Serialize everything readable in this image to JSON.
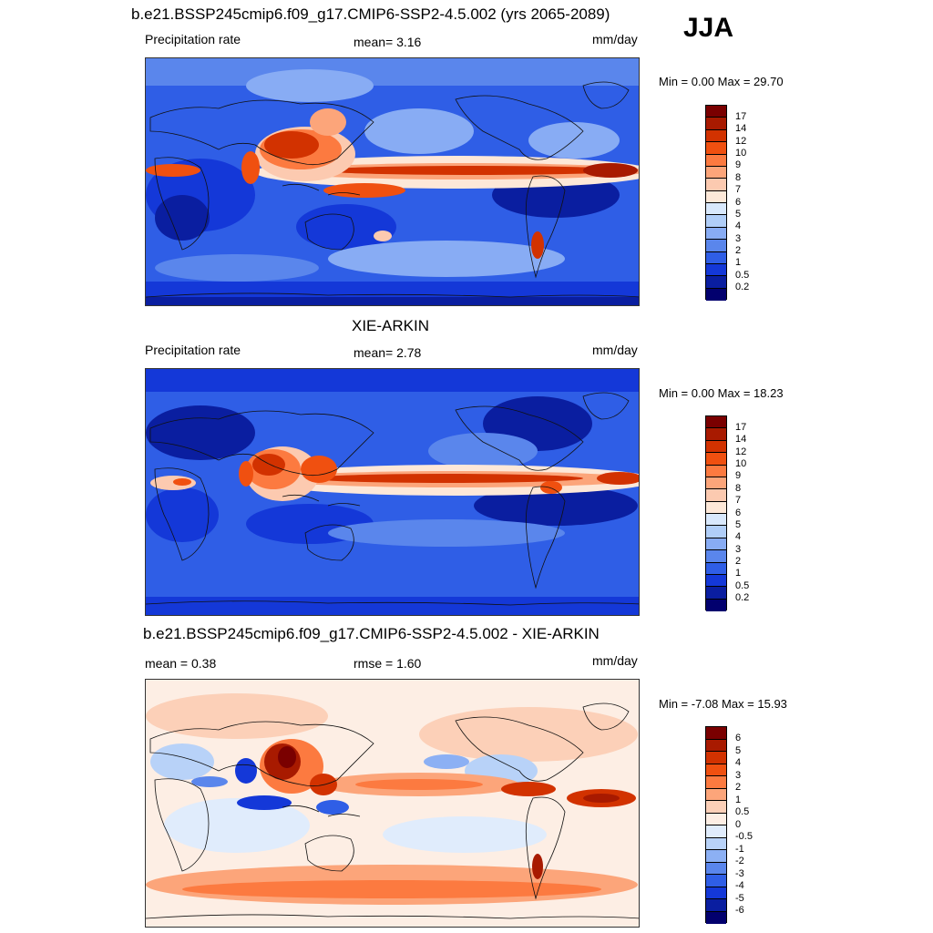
{
  "season": "JJA",
  "panels": [
    {
      "title": "b.e21.BSSP245cmip6.f09_g17.CMIP6-SSP2-4.5.002 (yrs 2065-2089)",
      "left_label": "Precipitation rate",
      "center_label": "mean=   3.16",
      "units": "mm/day",
      "minmax": "Min =   0.00 Max =  29.70",
      "colorbar_labels": [
        "17",
        "14",
        "12",
        "10",
        "9",
        "8",
        "7",
        "6",
        "5",
        "4",
        "3",
        "2",
        "1",
        "0.5",
        "0.2"
      ]
    },
    {
      "title": "XIE-ARKIN",
      "left_label": "Precipitation rate",
      "center_label": "mean=   2.78",
      "units": "mm/day",
      "minmax": "Min =   0.00 Max =  18.23",
      "colorbar_labels": [
        "17",
        "14",
        "12",
        "10",
        "9",
        "8",
        "7",
        "6",
        "5",
        "4",
        "3",
        "2",
        "1",
        "0.5",
        "0.2"
      ]
    },
    {
      "title": "b.e21.BSSP245cmip6.f09_g17.CMIP6-SSP2-4.5.002 - XIE-ARKIN",
      "left_label": "mean =   0.38",
      "center_label": "rmse =   1.60",
      "units": "mm/day",
      "minmax": "Min =  -7.08 Max =  15.93",
      "colorbar_labels": [
        "6",
        "5",
        "4",
        "3",
        "2",
        "1",
        "0.5",
        "0",
        "-0.5",
        "-1",
        "-2",
        "-3",
        "-4",
        "-5",
        "-6"
      ]
    }
  ],
  "colors": {
    "precip_scale": [
      "#7a0000",
      "#a81a00",
      "#d23200",
      "#f05010",
      "#fc7a40",
      "#fca57a",
      "#fccab0",
      "#fde8d8",
      "#d8e8fc",
      "#b0cef8",
      "#88acf4",
      "#5a86ec",
      "#2f5ee6",
      "#1438d8",
      "#0a1ea0",
      "#02006e"
    ],
    "diff_scale": [
      "#7a0000",
      "#a81a00",
      "#d23200",
      "#f05010",
      "#fc7a40",
      "#fca57a",
      "#fcd0b8",
      "#fdeee4",
      "#e0ecfc",
      "#b8d2f8",
      "#8cb0f4",
      "#5a86ec",
      "#2f5ee6",
      "#1438d8",
      "#0a1ea0",
      "#02006e"
    ]
  }
}
